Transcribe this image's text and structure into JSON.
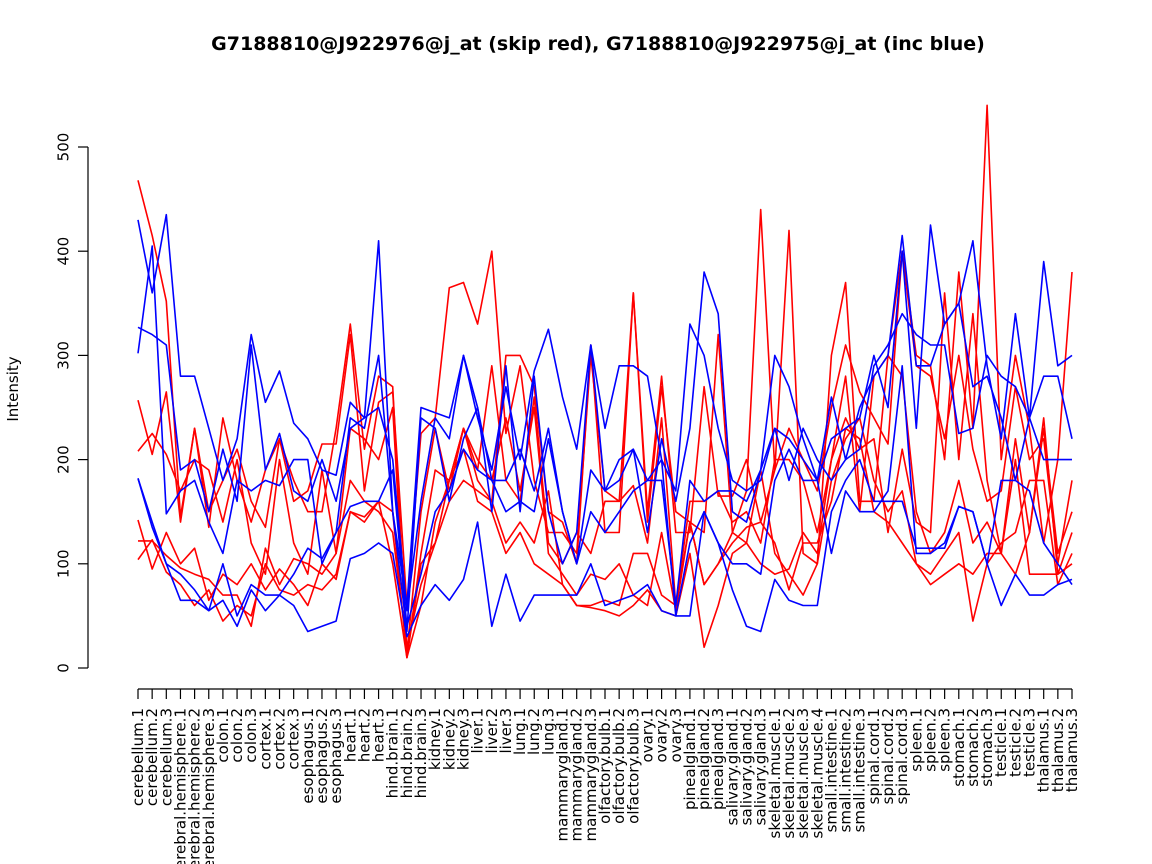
{
  "chart_data": {
    "type": "line",
    "title": "G7188810@J922976@j_at (skip red), G7188810@J922975@j_at (inc blue)",
    "xlabel": "",
    "ylabel": "Intensity",
    "ylim": [
      0,
      520
    ],
    "yticks": [
      0,
      100,
      200,
      300,
      400,
      500
    ],
    "colors": {
      "red": "#ff0000",
      "blue": "#0000ff"
    },
    "categories": [
      "cerebellum.1",
      "cerebellum.2",
      "cerebellum.3",
      "cerebral.hemisphere.1",
      "cerebral.hemisphere.2",
      "cerebral.hemisphere.3",
      "colon.1",
      "colon.2",
      "colon.3",
      "cortex.1",
      "cortex.2",
      "cortex.3",
      "esophagus.1",
      "esophagus.2",
      "esophagus.3",
      "heart.1",
      "heart.2",
      "heart.3",
      "hind.brain.1",
      "hind.brain.2",
      "hind.brain.3",
      "kidney.1",
      "kidney.2",
      "kidney.3",
      "liver.1",
      "liver.2",
      "liver.3",
      "lung.1",
      "lung.2",
      "lung.3",
      "mammarygland.1",
      "mammarygland.2",
      "mammarygland.3",
      "olfactory.bulb.1",
      "olfactory.bulb.2",
      "olfactory.bulb.3",
      "ovary.1",
      "ovary.2",
      "ovary.3",
      "pinealgland.1",
      "pinealgland.2",
      "pinealgland.3",
      "salivary.gland.1",
      "salivary.gland.2",
      "salivary.gland.3",
      "skeletal.muscle.1",
      "skeletal.muscle.2",
      "skeletal.muscle.3",
      "skeletal.muscle.4",
      "small.intestine.1",
      "small.intestine.2",
      "small.intestine.3",
      "spinal.cord.1",
      "spinal.cord.2",
      "spinal.cord.3",
      "spleen.1",
      "spleen.2",
      "spleen.3",
      "stomach.1",
      "stomach.2",
      "stomach.3",
      "testicle.1",
      "testicle.2",
      "testicle.3",
      "thalamus.1",
      "thalamus.2",
      "thalamus.3"
    ],
    "series": [
      {
        "name": "red-1",
        "color": "#ff0000",
        "values": [
          468,
          415,
          352,
          145,
          230,
          135,
          240,
          180,
          140,
          190,
          220,
          180,
          150,
          150,
          230,
          330,
          210,
          280,
          270,
          15,
          150,
          230,
          170,
          230,
          180,
          160,
          300,
          300,
          270,
          150,
          140,
          100,
          310,
          130,
          130,
          360,
          140,
          270,
          150,
          140,
          130,
          320,
          130,
          170,
          440,
          190,
          420,
          110,
          100,
          300,
          370,
          160,
          160,
          300,
          400,
          300,
          290,
          200,
          380,
          230,
          540,
          200,
          300,
          230,
          120,
          200,
          380
        ]
      },
      {
        "name": "red-2",
        "color": "#ff0000",
        "values": [
          257,
          205,
          265,
          140,
          230,
          150,
          180,
          210,
          160,
          135,
          220,
          160,
          170,
          215,
          215,
          320,
          170,
          255,
          265,
          60,
          225,
          240,
          365,
          370,
          330,
          400,
          225,
          290,
          180,
          130,
          130,
          110,
          300,
          170,
          160,
          360,
          150,
          280,
          130,
          130,
          270,
          165,
          165,
          200,
          140,
          190,
          230,
          200,
          170,
          250,
          310,
          265,
          240,
          215,
          400,
          290,
          280,
          220,
          300,
          210,
          160,
          170,
          270,
          200,
          220,
          100,
          180
        ]
      },
      {
        "name": "red-3",
        "color": "#ff0000",
        "values": [
          208,
          225,
          205,
          170,
          200,
          190,
          140,
          200,
          120,
          90,
          200,
          120,
          90,
          190,
          110,
          230,
          220,
          200,
          250,
          10,
          110,
          190,
          180,
          230,
          190,
          290,
          180,
          160,
          260,
          120,
          100,
          130,
          110,
          160,
          160,
          175,
          120,
          240,
          60,
          160,
          160,
          170,
          140,
          150,
          120,
          200,
          200,
          180,
          130,
          200,
          240,
          210,
          220,
          130,
          210,
          140,
          130,
          360,
          200,
          340,
          180,
          110,
          220,
          130,
          240,
          90,
          130
        ]
      },
      {
        "name": "red-4",
        "color": "#ff0000",
        "values": [
          142,
          95,
          130,
          100,
          115,
          65,
          90,
          80,
          100,
          75,
          95,
          80,
          60,
          100,
          85,
          150,
          140,
          160,
          100,
          10,
          60,
          140,
          180,
          230,
          200,
          180,
          240,
          170,
          250,
          110,
          90,
          70,
          90,
          85,
          100,
          70,
          60,
          130,
          55,
          140,
          80,
          100,
          130,
          120,
          100,
          90,
          95,
          130,
          110,
          200,
          280,
          150,
          280,
          300,
          280,
          150,
          110,
          130,
          180,
          120,
          140,
          110,
          90,
          130,
          230,
          110,
          150
        ]
      },
      {
        "name": "red-5",
        "color": "#ff0000",
        "values": [
          122,
          122,
          108,
          96,
          90,
          85,
          70,
          70,
          40,
          115,
          80,
          105,
          100,
          90,
          110,
          180,
          160,
          150,
          130,
          20,
          80,
          120,
          160,
          180,
          170,
          160,
          120,
          140,
          120,
          170,
          80,
          60,
          58,
          55,
          50,
          60,
          75,
          55,
          50,
          110,
          20,
          60,
          110,
          120,
          190,
          110,
          90,
          70,
          100,
          180,
          220,
          240,
          180,
          150,
          170,
          100,
          90,
          110,
          130,
          45,
          100,
          120,
          130,
          180,
          180,
          80,
          110
        ]
      },
      {
        "name": "red-6",
        "color": "#ff0000",
        "values": [
          104,
          123,
          92,
          80,
          60,
          75,
          45,
          60,
          50,
          100,
          75,
          70,
          80,
          75,
          90,
          150,
          145,
          160,
          150,
          10,
          100,
          120,
          180,
          210,
          160,
          150,
          110,
          130,
          100,
          90,
          80,
          60,
          60,
          65,
          60,
          110,
          110,
          70,
          60,
          140,
          80,
          100,
          120,
          135,
          140,
          120,
          75,
          120,
          120,
          160,
          230,
          220,
          150,
          140,
          120,
          100,
          80,
          90,
          100,
          90,
          110,
          110,
          200,
          90,
          90,
          90,
          100
        ]
      },
      {
        "name": "blue-1",
        "color": "#0000ff",
        "values": [
          430,
          360,
          435,
          280,
          280,
          230,
          180,
          220,
          320,
          255,
          285,
          235,
          220,
          190,
          185,
          255,
          240,
          410,
          150,
          60,
          250,
          245,
          240,
          300,
          240,
          190,
          270,
          200,
          285,
          325,
          260,
          210,
          310,
          230,
          290,
          290,
          280,
          200,
          170,
          330,
          300,
          230,
          180,
          170,
          180,
          230,
          220,
          200,
          180,
          220,
          230,
          240,
          300,
          250,
          400,
          230,
          425,
          330,
          350,
          410,
          290,
          220,
          340,
          240,
          390,
          290,
          300
        ]
      },
      {
        "name": "blue-2",
        "color": "#0000ff",
        "values": [
          327,
          320,
          310,
          190,
          200,
          150,
          210,
          160,
          310,
          190,
          225,
          170,
          160,
          200,
          160,
          230,
          240,
          250,
          200,
          55,
          160,
          240,
          220,
          300,
          250,
          150,
          290,
          150,
          280,
          150,
          100,
          130,
          310,
          170,
          180,
          210,
          130,
          220,
          160,
          230,
          380,
          340,
          150,
          140,
          190,
          300,
          270,
          220,
          180,
          260,
          200,
          250,
          280,
          300,
          415,
          290,
          290,
          330,
          350,
          270,
          280,
          240,
          180,
          240,
          280,
          280,
          220
        ]
      },
      {
        "name": "blue-3",
        "color": "#0000ff",
        "values": [
          302,
          405,
          148,
          170,
          180,
          140,
          110,
          180,
          170,
          180,
          175,
          200,
          200,
          100,
          130,
          240,
          230,
          300,
          150,
          35,
          240,
          230,
          160,
          220,
          250,
          180,
          180,
          210,
          170,
          230,
          150,
          100,
          190,
          170,
          200,
          210,
          180,
          180,
          60,
          180,
          160,
          170,
          170,
          160,
          190,
          230,
          180,
          230,
          200,
          180,
          200,
          210,
          290,
          310,
          340,
          320,
          310,
          310,
          225,
          230,
          300,
          280,
          270,
          240,
          200,
          200,
          200
        ]
      },
      {
        "name": "blue-4",
        "color": "#0000ff",
        "values": [
          182,
          135,
          100,
          90,
          75,
          55,
          100,
          50,
          80,
          70,
          70,
          90,
          115,
          105,
          130,
          155,
          160,
          160,
          190,
          40,
          90,
          150,
          170,
          210,
          190,
          180,
          150,
          160,
          150,
          220,
          150,
          100,
          150,
          130,
          150,
          170,
          180,
          200,
          50,
          120,
          150,
          120,
          100,
          100,
          90,
          180,
          210,
          180,
          180,
          110,
          170,
          150,
          150,
          170,
          290,
          110,
          110,
          120,
          155,
          150,
          100,
          180,
          180,
          170,
          120,
          100,
          80
        ]
      },
      {
        "name": "blue-5",
        "color": "#0000ff",
        "values": [
          182,
          140,
          100,
          65,
          65,
          55,
          65,
          40,
          75,
          55,
          70,
          60,
          35,
          40,
          45,
          105,
          110,
          120,
          110,
          30,
          60,
          80,
          65,
          85,
          140,
          40,
          90,
          45,
          70,
          70,
          70,
          70,
          100,
          60,
          65,
          70,
          80,
          55,
          50,
          50,
          150,
          120,
          75,
          40,
          35,
          85,
          65,
          60,
          60,
          150,
          180,
          200,
          160,
          160,
          160,
          115,
          115,
          115,
          155,
          150,
          100,
          60,
          90,
          70,
          70,
          80,
          85
        ]
      }
    ]
  }
}
